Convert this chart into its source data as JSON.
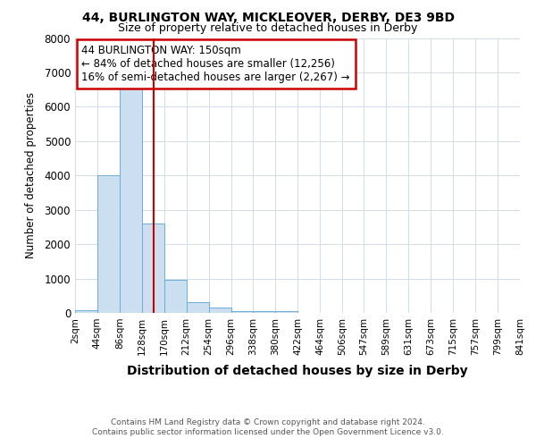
{
  "title1": "44, BURLINGTON WAY, MICKLEOVER, DERBY, DE3 9BD",
  "title2": "Size of property relative to detached houses in Derby",
  "xlabel": "Distribution of detached houses by size in Derby",
  "ylabel": "Number of detached properties",
  "annotation_line1": "44 BURLINGTON WAY: 150sqm",
  "annotation_line2": "← 84% of detached houses are smaller (12,256)",
  "annotation_line3": "16% of semi-detached houses are larger (2,267) →",
  "property_size": 150,
  "bin_edges": [
    2,
    44,
    86,
    128,
    170,
    212,
    254,
    296,
    338,
    380,
    422,
    464,
    506,
    547,
    589,
    631,
    673,
    715,
    757,
    799,
    841
  ],
  "bin_counts": [
    75,
    4000,
    6600,
    2600,
    950,
    320,
    145,
    55,
    55,
    55,
    0,
    0,
    0,
    0,
    0,
    0,
    0,
    0,
    0,
    0
  ],
  "bar_facecolor": "#ccdff0",
  "bar_edgecolor": "#6aaed6",
  "vline_color": "#cc0000",
  "annotation_box_color": "#cc0000",
  "background_color": "#ffffff",
  "grid_color": "#d0dce8",
  "ylim": [
    0,
    8000
  ],
  "yticks": [
    0,
    1000,
    2000,
    3000,
    4000,
    5000,
    6000,
    7000,
    8000
  ],
  "footer1": "Contains HM Land Registry data © Crown copyright and database right 2024.",
  "footer2": "Contains public sector information licensed under the Open Government Licence v3.0."
}
